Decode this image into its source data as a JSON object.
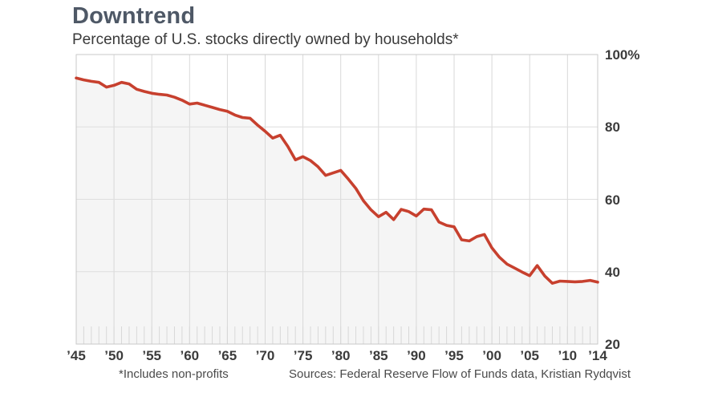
{
  "header": {
    "title": "Downtrend",
    "subtitle": "Percentage of U.S. stocks directly owned by households*"
  },
  "footer": {
    "note": "*Includes non-profits",
    "source": "Sources: Federal Reserve Flow of Funds data, Kristian Rydqvist"
  },
  "colors": {
    "line": "#c7402e",
    "area_fill": "#f5f5f5",
    "grid_horizontal": "#dedede",
    "grid_vertical": "#d8d8d8",
    "border": "#c9c9c9",
    "title_text": "#4e5866",
    "axis_text": "#3b3b3b"
  },
  "chart_data": {
    "type": "line",
    "title": "Downtrend",
    "subtitle": "Percentage of U.S. stocks directly owned by households*",
    "xlabel": "",
    "ylabel": "Percent of U.S. stocks directly owned by households",
    "x_start_year": 1945,
    "x_end_year": 2014,
    "x_step_years": 1,
    "ylim": [
      20,
      100
    ],
    "grid": true,
    "legend": "none",
    "values": [
      93.5,
      93.0,
      92.6,
      92.3,
      91.0,
      91.5,
      92.3,
      91.9,
      90.4,
      89.8,
      89.3,
      89.0,
      88.8,
      88.2,
      87.4,
      86.3,
      86.6,
      86.0,
      85.4,
      84.8,
      84.3,
      83.3,
      82.6,
      82.4,
      80.5,
      78.8,
      76.9,
      77.7,
      74.6,
      70.9,
      71.8,
      70.7,
      69.0,
      66.6,
      67.3,
      68.0,
      65.6,
      63.0,
      59.6,
      57.1,
      55.2,
      56.4,
      54.4,
      57.2,
      56.6,
      55.4,
      57.3,
      57.1,
      53.7,
      52.8,
      52.4,
      48.8,
      48.5,
      49.7,
      50.3,
      46.6,
      44.0,
      42.1,
      41.0,
      39.9,
      38.9,
      41.7,
      38.8,
      36.8,
      37.4,
      37.3,
      37.2,
      37.3,
      37.6,
      37.1
    ],
    "xticks": [
      {
        "label": "’45",
        "year": 1945
      },
      {
        "label": "’50",
        "year": 1950
      },
      {
        "label": "’55",
        "year": 1955
      },
      {
        "label": "’60",
        "year": 1960
      },
      {
        "label": "’65",
        "year": 1965
      },
      {
        "label": "’70",
        "year": 1970
      },
      {
        "label": "’75",
        "year": 1975
      },
      {
        "label": "’80",
        "year": 1980
      },
      {
        "label": "’85",
        "year": 1985
      },
      {
        "label": "’90",
        "year": 1990
      },
      {
        "label": "’95",
        "year": 1995
      },
      {
        "label": "’00",
        "year": 2000
      },
      {
        "label": "’05",
        "year": 2005
      },
      {
        "label": "’10",
        "year": 2010
      },
      {
        "label": "’14",
        "year": 2014
      }
    ],
    "yticks": [
      {
        "label": "100%",
        "value": 100
      },
      {
        "label": "80",
        "value": 80
      },
      {
        "label": "60",
        "value": 60
      },
      {
        "label": "40",
        "value": 40
      },
      {
        "label": "20",
        "value": 20
      }
    ]
  }
}
